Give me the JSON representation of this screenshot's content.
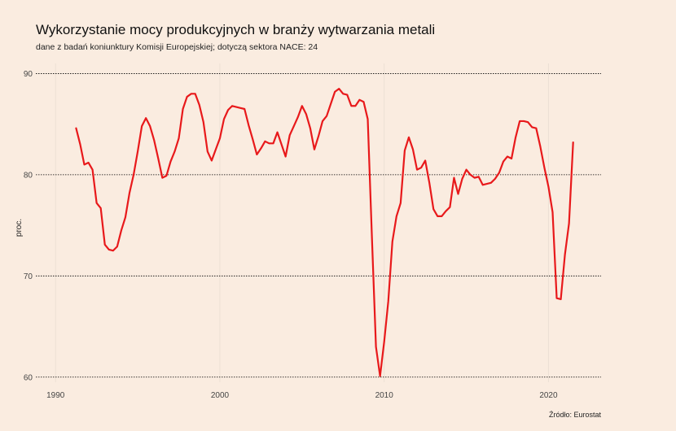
{
  "chart_data": {
    "type": "line",
    "title": "Wykorzystanie mocy produkcyjnych w branży wytwarzania metali",
    "subtitle": "dane z badań koniunktury Komisji Europejskiej; dotyczą sektora NACE: 24",
    "caption": "Źródło: Eurostat",
    "xlabel": "",
    "ylabel": "proc.",
    "xlim": [
      1988.8,
      2023.2
    ],
    "ylim": [
      59.5,
      91
    ],
    "x_ticks": [
      1990,
      2000,
      2010,
      2020
    ],
    "x_tick_labels": [
      "1990",
      "2000",
      "2010",
      "2020"
    ],
    "y_ticks": [
      60,
      70,
      80,
      90
    ],
    "y_tick_labels": [
      "60",
      "70",
      "80",
      "90"
    ],
    "grid": "horizontal dotted major lines",
    "legend": "none",
    "colors": {
      "background": "#faece0",
      "line": "#e8191b",
      "grid": "#000000",
      "text": "#222222"
    },
    "series": [
      {
        "x": [
          1991.25,
          1991.5,
          1991.75,
          1992.0,
          1992.25,
          1992.5,
          1992.75,
          1993.0,
          1993.25,
          1993.5,
          1993.75,
          1994.0,
          1994.25,
          1994.5,
          1994.75,
          1995.0,
          1995.25,
          1995.5,
          1995.75,
          1996.0,
          1996.25,
          1996.5,
          1996.75,
          1997.0,
          1997.25,
          1997.5,
          1997.75,
          1998.0,
          1998.25,
          1998.5,
          1998.75,
          1999.0,
          1999.25,
          1999.5,
          1999.75,
          2000.0,
          2000.25,
          2000.5,
          2000.75,
          2001.0,
          2001.25,
          2001.5,
          2001.75,
          2002.0,
          2002.25,
          2002.5,
          2002.75,
          2003.0,
          2003.25,
          2003.5,
          2003.75,
          2004.0,
          2004.25,
          2004.5,
          2004.75,
          2005.0,
          2005.25,
          2005.5,
          2005.75,
          2006.0,
          2006.25,
          2006.5,
          2006.75,
          2007.0,
          2007.25,
          2007.5,
          2007.75,
          2008.0,
          2008.25,
          2008.5,
          2008.75,
          2009.0,
          2009.25,
          2009.5,
          2009.75,
          2010.0,
          2010.25,
          2010.5,
          2010.75,
          2011.0,
          2011.25,
          2011.5,
          2011.75,
          2012.0,
          2012.25,
          2012.5,
          2012.75,
          2013.0,
          2013.25,
          2013.5,
          2013.75,
          2014.0,
          2014.25,
          2014.5,
          2014.75,
          2015.0,
          2015.25,
          2015.5,
          2015.75,
          2016.0,
          2016.25,
          2016.5,
          2016.75,
          2017.0,
          2017.25,
          2017.5,
          2017.75,
          2018.0,
          2018.25,
          2018.5,
          2018.75,
          2019.0,
          2019.25,
          2019.5,
          2019.75,
          2020.0,
          2020.25,
          2020.5,
          2020.75,
          2021.0,
          2021.25,
          2021.5
        ],
        "values": [
          84.6,
          83.0,
          81.0,
          81.2,
          80.5,
          77.2,
          76.7,
          73.1,
          72.6,
          72.5,
          72.9,
          74.5,
          75.8,
          78.2,
          80.0,
          82.3,
          84.8,
          85.6,
          84.8,
          83.4,
          81.6,
          79.7,
          79.9,
          81.3,
          82.3,
          83.6,
          86.5,
          87.7,
          88.0,
          88.0,
          86.9,
          85.2,
          82.3,
          81.4,
          82.5,
          83.6,
          85.5,
          86.4,
          86.8,
          86.7,
          86.6,
          86.5,
          84.9,
          83.5,
          82.0,
          82.6,
          83.3,
          83.1,
          83.1,
          84.2,
          83.0,
          81.8,
          83.9,
          84.8,
          85.7,
          86.8,
          86.0,
          84.6,
          82.5,
          83.8,
          85.3,
          85.8,
          87.0,
          88.2,
          88.5,
          88.0,
          87.9,
          86.8,
          86.8,
          87.4,
          87.2,
          85.5,
          74.0,
          63.0,
          60.1,
          63.5,
          67.5,
          73.4,
          75.9,
          77.2,
          82.4,
          83.7,
          82.5,
          80.5,
          80.7,
          81.4,
          79.2,
          76.6,
          75.9,
          75.9,
          76.4,
          76.8,
          79.7,
          78.1,
          79.6,
          80.5,
          80.0,
          79.7,
          79.8,
          79.0,
          79.1,
          79.2,
          79.6,
          80.2,
          81.3,
          81.8,
          81.6,
          83.7,
          85.3,
          85.3,
          85.2,
          84.7,
          84.6,
          82.8,
          80.7,
          78.8,
          76.3,
          67.8,
          67.7,
          72.1,
          75.2,
          83.2
        ]
      }
    ]
  }
}
